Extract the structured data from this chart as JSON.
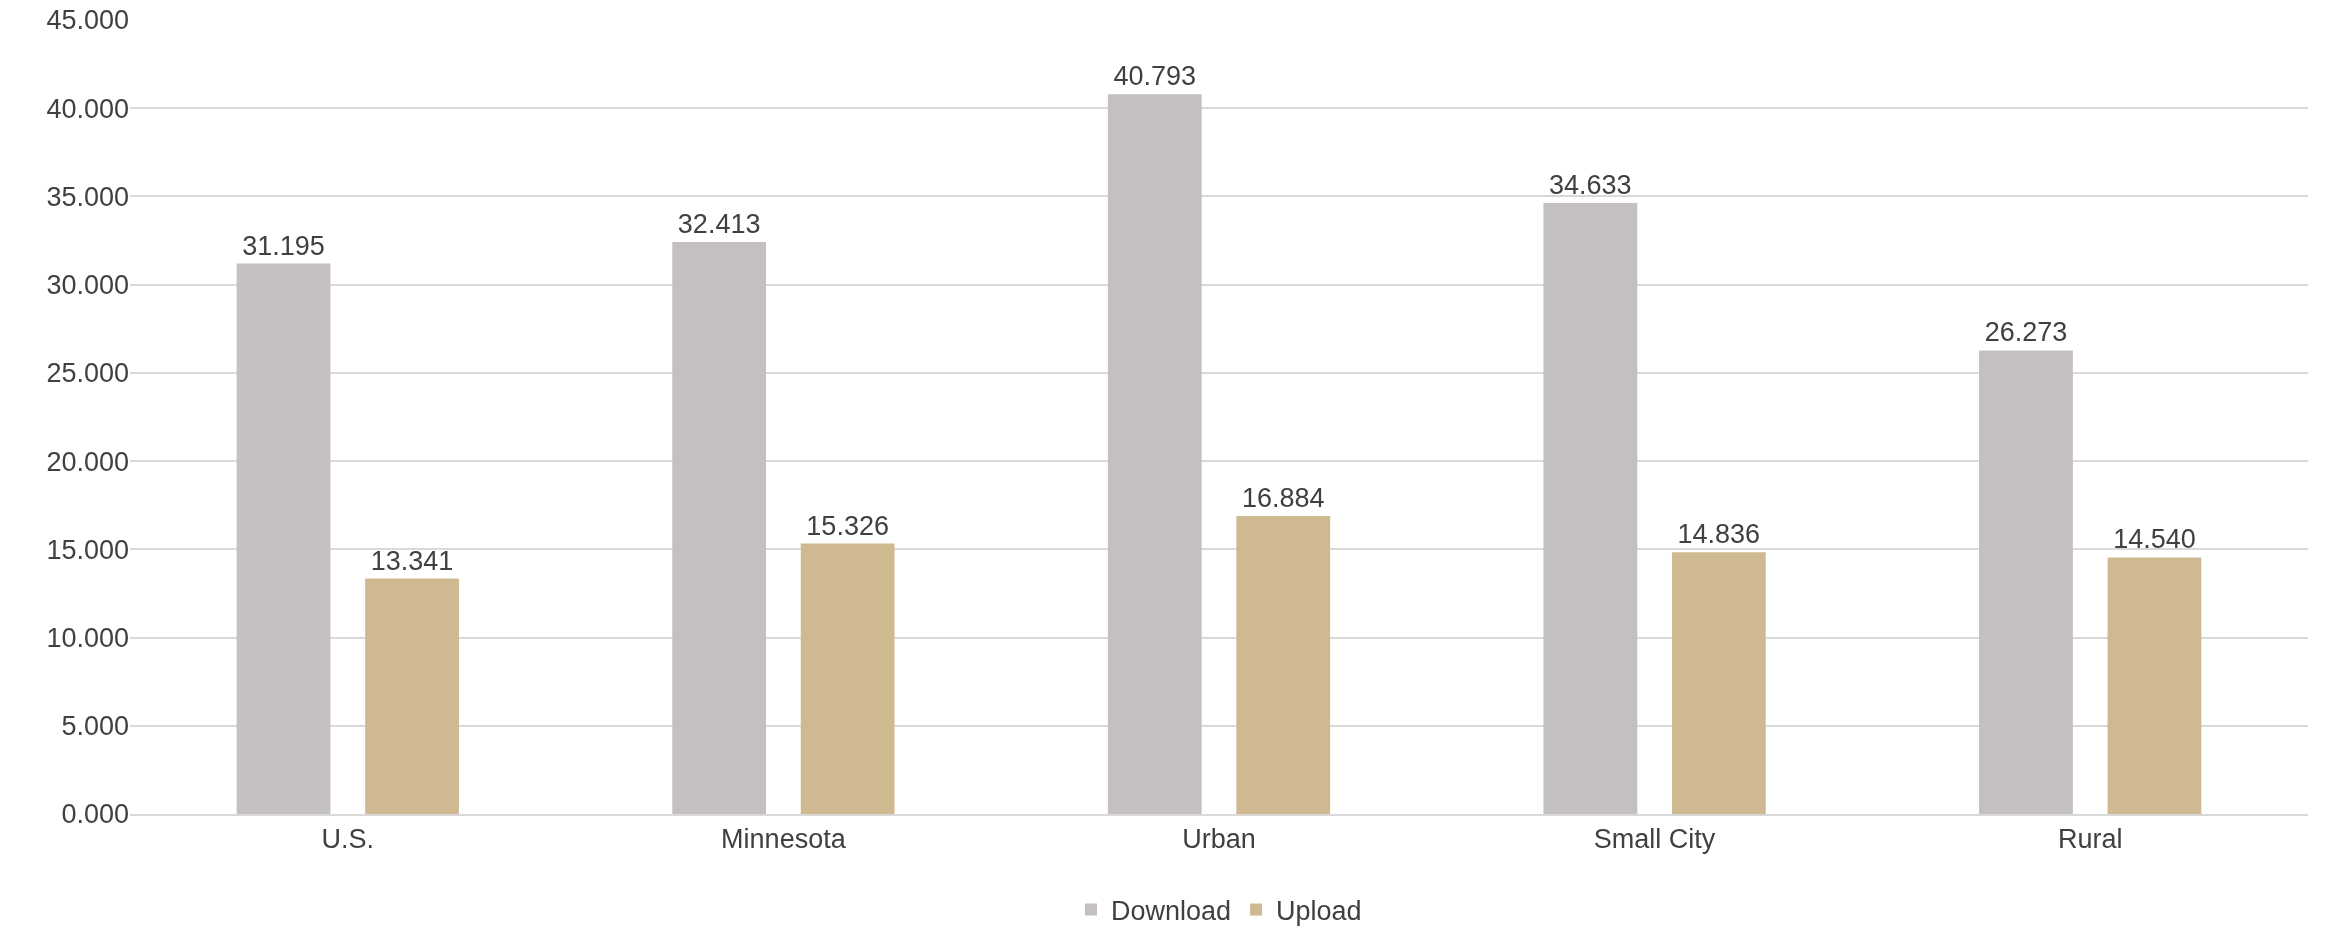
{
  "chart_data": {
    "type": "bar",
    "categories": [
      "U.S.",
      "Minnesota",
      "Urban",
      "Small City",
      "Rural"
    ],
    "series": [
      {
        "name": "Download",
        "color": "#c4c0c1",
        "values": [
          31.195,
          32.413,
          40.793,
          34.633,
          26.273
        ],
        "value_labels": [
          "31.195",
          "32.413",
          "40.793",
          "34.633",
          "26.273"
        ]
      },
      {
        "name": "Upload",
        "color": "#cfb990",
        "values": [
          13.341,
          15.326,
          16.884,
          14.836,
          14.54
        ],
        "value_labels": [
          "13.341",
          "15.326",
          "16.884",
          "14.836",
          "14.540"
        ]
      }
    ],
    "ylim": [
      0,
      45
    ],
    "yticks": [
      {
        "value": 0,
        "label": "0.000"
      },
      {
        "value": 5,
        "label": "5.000"
      },
      {
        "value": 10,
        "label": "10.000"
      },
      {
        "value": 15,
        "label": "15.000"
      },
      {
        "value": 20,
        "label": "20.000"
      },
      {
        "value": 25,
        "label": "25.000"
      },
      {
        "value": 30,
        "label": "30.000"
      },
      {
        "value": 35,
        "label": "35.000"
      },
      {
        "value": 40,
        "label": "40.000"
      },
      {
        "value": 45,
        "label": "45.000"
      }
    ],
    "grid": "y",
    "legend": "bottom"
  }
}
